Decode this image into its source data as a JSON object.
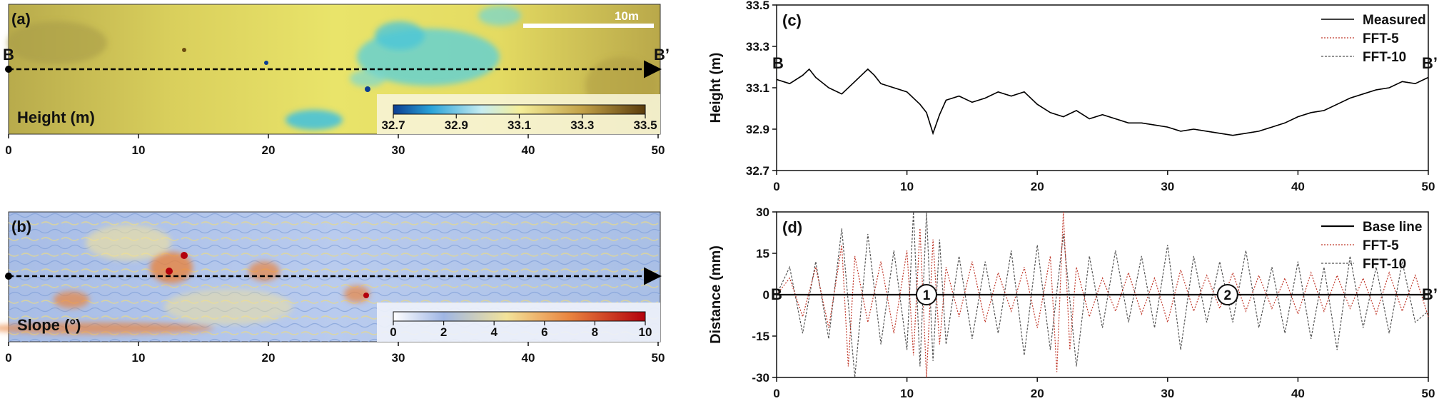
{
  "colors": {
    "measured": "#000000",
    "fft5": "#c0392b",
    "fft10": "#555555",
    "height_low": "#1a6fc1",
    "height_mid": "#f2ea7a",
    "height_high": "#7a5a16",
    "slope_low": "#9fb6e4",
    "slope_high": "#b3000c"
  },
  "chart_data": [
    {
      "id": "a",
      "type": "heatmap",
      "panel_label": "(a)",
      "colorbar_label": "Height (m)",
      "colorbar_ticks": [
        "32.7",
        "32.9",
        "33.1",
        "33.3",
        "33.5"
      ],
      "xticks": [
        "0",
        "10",
        "20",
        "30",
        "40",
        "50"
      ],
      "scale_bar_label": "10m",
      "profile_start": "B",
      "profile_end": "B’",
      "xlim": [
        0,
        50
      ]
    },
    {
      "id": "b",
      "type": "heatmap",
      "panel_label": "(b)",
      "colorbar_label": "Slope (°)",
      "colorbar_ticks": [
        "0",
        "2",
        "4",
        "6",
        "8",
        "10"
      ],
      "xticks": [
        "0",
        "10",
        "20",
        "30",
        "40",
        "50"
      ],
      "xlim": [
        0,
        50
      ]
    },
    {
      "id": "c",
      "type": "line",
      "panel_label": "(c)",
      "ylabel": "Height (m)",
      "xlim": [
        0,
        50
      ],
      "ylim": [
        32.7,
        33.5
      ],
      "xticks": [
        "0",
        "10",
        "20",
        "30",
        "40",
        "50"
      ],
      "yticks": [
        "32.7",
        "32.9",
        "33.1",
        "33.3",
        "33.5"
      ],
      "legend_position": "top-right",
      "profile_start": "B",
      "profile_end": "B’",
      "series": [
        {
          "name": "Measured",
          "x": [
            0,
            1,
            2,
            2.5,
            3,
            4,
            5,
            6,
            7,
            7.5,
            8,
            9,
            10,
            11,
            11.5,
            12,
            12.5,
            13,
            14,
            15,
            16,
            17,
            18,
            19,
            20,
            21,
            22,
            23,
            24,
            25,
            26,
            27,
            28,
            29,
            30,
            31,
            32,
            33,
            34,
            35,
            36,
            37,
            38,
            39,
            40,
            41,
            42,
            43,
            44,
            45,
            46,
            47,
            48,
            49,
            50
          ],
          "y": [
            33.14,
            33.12,
            33.16,
            33.19,
            33.15,
            33.1,
            33.07,
            33.13,
            33.19,
            33.16,
            33.12,
            33.1,
            33.08,
            33.02,
            32.98,
            32.88,
            32.97,
            33.04,
            33.06,
            33.03,
            33.05,
            33.08,
            33.06,
            33.08,
            33.02,
            32.98,
            32.96,
            32.99,
            32.95,
            32.97,
            32.95,
            32.93,
            32.93,
            32.92,
            32.91,
            32.89,
            32.9,
            32.89,
            32.88,
            32.87,
            32.88,
            32.89,
            32.91,
            32.93,
            32.96,
            32.98,
            32.99,
            33.02,
            33.05,
            33.07,
            33.09,
            33.1,
            33.13,
            33.12,
            33.15
          ]
        },
        {
          "name": "FFT-5",
          "x": [
            0,
            1,
            2,
            2.5,
            3,
            4,
            5,
            6,
            7,
            7.5,
            8,
            9,
            10,
            11,
            11.5,
            12,
            12.5,
            13,
            14,
            15,
            16,
            17,
            18,
            19,
            20,
            21,
            22,
            23,
            24,
            25,
            26,
            27,
            28,
            29,
            30,
            31,
            32,
            33,
            34,
            35,
            36,
            37,
            38,
            39,
            40,
            41,
            42,
            43,
            44,
            45,
            46,
            47,
            48,
            49,
            50
          ],
          "y": [
            33.14,
            33.12,
            33.16,
            33.19,
            33.15,
            33.1,
            33.07,
            33.13,
            33.19,
            33.16,
            33.12,
            33.1,
            33.08,
            33.02,
            32.98,
            32.88,
            32.97,
            33.04,
            33.06,
            33.03,
            33.05,
            33.08,
            33.06,
            33.08,
            33.02,
            32.98,
            32.96,
            32.99,
            32.95,
            32.97,
            32.95,
            32.93,
            32.93,
            32.92,
            32.91,
            32.89,
            32.9,
            32.89,
            32.88,
            32.87,
            32.88,
            32.89,
            32.91,
            32.93,
            32.96,
            32.98,
            32.99,
            33.02,
            33.05,
            33.07,
            33.09,
            33.1,
            33.13,
            33.12,
            33.15
          ]
        },
        {
          "name": "FFT-10",
          "x": [
            0,
            1,
            2,
            2.5,
            3,
            4,
            5,
            6,
            7,
            7.5,
            8,
            9,
            10,
            11,
            11.5,
            12,
            12.5,
            13,
            14,
            15,
            16,
            17,
            18,
            19,
            20,
            21,
            22,
            23,
            24,
            25,
            26,
            27,
            28,
            29,
            30,
            31,
            32,
            33,
            34,
            35,
            36,
            37,
            38,
            39,
            40,
            41,
            42,
            43,
            44,
            45,
            46,
            47,
            48,
            49,
            50
          ],
          "y": [
            33.14,
            33.12,
            33.16,
            33.19,
            33.15,
            33.1,
            33.07,
            33.13,
            33.19,
            33.16,
            33.12,
            33.1,
            33.08,
            33.02,
            32.98,
            32.88,
            32.97,
            33.04,
            33.06,
            33.03,
            33.05,
            33.08,
            33.06,
            33.08,
            33.02,
            32.98,
            32.96,
            32.99,
            32.95,
            32.97,
            32.95,
            32.93,
            32.93,
            32.92,
            32.91,
            32.89,
            32.9,
            32.89,
            32.88,
            32.87,
            32.88,
            32.89,
            32.91,
            32.93,
            32.96,
            32.98,
            32.99,
            33.02,
            33.05,
            33.07,
            33.09,
            33.1,
            33.13,
            33.12,
            33.15
          ]
        }
      ]
    },
    {
      "id": "d",
      "type": "line",
      "panel_label": "(d)",
      "ylabel": "Distance (mm)",
      "xlim": [
        0,
        50
      ],
      "ylim": [
        -30,
        30
      ],
      "xticks": [
        "0",
        "10",
        "20",
        "30",
        "40",
        "50"
      ],
      "yticks": [
        "-30",
        "-15",
        "0",
        "15",
        "30"
      ],
      "legend_position": "top-right",
      "profile_start": "B",
      "profile_end": "B’",
      "markers": [
        {
          "label": "1",
          "x": 11.5,
          "y": 0
        },
        {
          "label": "2",
          "x": 34.6,
          "y": 0
        }
      ],
      "series": [
        {
          "name": "Base line",
          "x": [
            0,
            50
          ],
          "y": [
            0,
            0
          ]
        },
        {
          "name": "FFT-5",
          "x": [
            0,
            1,
            2,
            3,
            4,
            5,
            5.5,
            6,
            7,
            8,
            9,
            10,
            10.5,
            11,
            11.5,
            12,
            12.5,
            13,
            14,
            15,
            16,
            17,
            18,
            19,
            20,
            21,
            21.5,
            22,
            22.5,
            23,
            24,
            25,
            26,
            27,
            28,
            29,
            30,
            31,
            32,
            33,
            34,
            35,
            36,
            37,
            38,
            39,
            40,
            41,
            42,
            43,
            44,
            45,
            46,
            47,
            48,
            49,
            50
          ],
          "y": [
            0,
            6,
            -8,
            10,
            -12,
            18,
            -26,
            14,
            -10,
            12,
            -14,
            16,
            -22,
            24,
            -30,
            20,
            -18,
            10,
            -8,
            12,
            -10,
            8,
            -6,
            10,
            -12,
            14,
            -28,
            30,
            -20,
            10,
            -8,
            6,
            -6,
            8,
            -7,
            6,
            -10,
            9,
            -6,
            7,
            -5,
            8,
            -6,
            7,
            -5,
            6,
            -7,
            8,
            -6,
            7,
            -5,
            6,
            -7,
            8,
            -6,
            7,
            -8
          ]
        },
        {
          "name": "FFT-10",
          "x": [
            0,
            1,
            2,
            3,
            4,
            5,
            6,
            7,
            8,
            9,
            10,
            10.5,
            11,
            11.5,
            12,
            12.5,
            13,
            14,
            15,
            16,
            17,
            18,
            19,
            20,
            21,
            22,
            23,
            24,
            25,
            26,
            27,
            28,
            29,
            30,
            31,
            32,
            33,
            34,
            35,
            36,
            37,
            38,
            39,
            40,
            41,
            42,
            43,
            44,
            45,
            46,
            47,
            48,
            49,
            50
          ],
          "y": [
            0,
            10,
            -14,
            12,
            -16,
            24,
            -30,
            22,
            -18,
            16,
            -20,
            30,
            -26,
            30,
            -24,
            20,
            -18,
            14,
            -16,
            12,
            -14,
            16,
            -22,
            18,
            -20,
            22,
            -26,
            14,
            -12,
            16,
            -10,
            14,
            -12,
            18,
            -20,
            14,
            -10,
            12,
            -10,
            16,
            -12,
            10,
            -14,
            12,
            -16,
            10,
            -20,
            14,
            -12,
            10,
            -14,
            12,
            -10,
            -6
          ]
        }
      ]
    }
  ]
}
